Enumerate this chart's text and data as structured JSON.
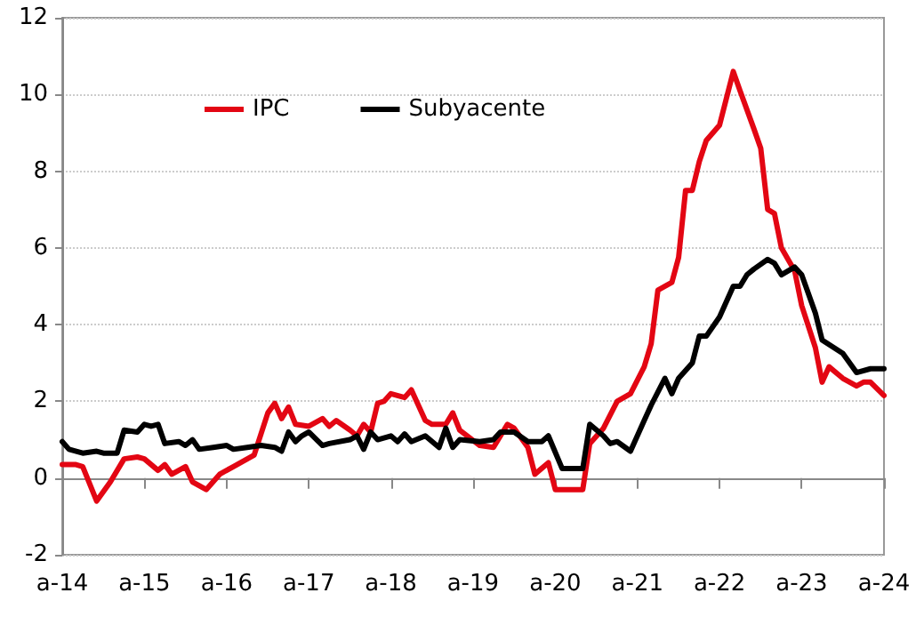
{
  "chart_data": {
    "type": "line",
    "xlim": [
      "2014-04",
      "2024-04"
    ],
    "xticks": [
      {
        "value": "2014-04",
        "label": "a-14"
      },
      {
        "value": "2015-04",
        "label": "a-15"
      },
      {
        "value": "2016-04",
        "label": "a-16"
      },
      {
        "value": "2017-04",
        "label": "a-17"
      },
      {
        "value": "2018-04",
        "label": "a-18"
      },
      {
        "value": "2019-04",
        "label": "a-19"
      },
      {
        "value": "2020-04",
        "label": "a-20"
      },
      {
        "value": "2021-04",
        "label": "a-21"
      },
      {
        "value": "2022-04",
        "label": "a-22"
      },
      {
        "value": "2023-04",
        "label": "a-23"
      },
      {
        "value": "2024-04",
        "label": "a-24"
      }
    ],
    "ylim": [
      -2,
      12
    ],
    "yticks": [
      -2,
      0,
      2,
      4,
      6,
      8,
      10,
      12
    ],
    "grid": "y",
    "legend": "top left",
    "marker": "none",
    "line_style": "solid",
    "series": [
      {
        "name": "IPC",
        "color": "#e30613",
        "x": [
          "2014-04",
          "2014-06",
          "2014-07",
          "2014-09",
          "2014-11",
          "2015-01",
          "2015-03",
          "2015-04",
          "2015-06",
          "2015-07",
          "2015-08",
          "2015-10",
          "2015-11",
          "2016-01",
          "2016-03",
          "2016-05",
          "2016-08",
          "2016-10",
          "2016-11",
          "2016-12",
          "2017-01",
          "2017-02",
          "2017-04",
          "2017-06",
          "2017-07",
          "2017-08",
          "2017-10",
          "2017-11",
          "2017-12",
          "2018-01",
          "2018-02",
          "2018-03",
          "2018-04",
          "2018-06",
          "2018-07",
          "2018-09",
          "2018-10",
          "2018-12",
          "2019-01",
          "2019-02",
          "2019-05",
          "2019-07",
          "2019-09",
          "2019-10",
          "2019-12",
          "2020-01",
          "2020-03",
          "2020-04",
          "2020-08",
          "2020-09",
          "2020-11",
          "2021-01",
          "2021-03",
          "2021-05",
          "2021-06",
          "2021-07",
          "2021-09",
          "2021-10",
          "2021-11",
          "2021-12",
          "2022-01",
          "2022-02",
          "2022-04",
          "2022-06",
          "2022-07",
          "2022-09",
          "2022-10",
          "2022-11",
          "2022-12",
          "2023-01",
          "2023-03",
          "2023-04",
          "2023-06",
          "2023-07",
          "2023-08",
          "2023-10",
          "2023-12",
          "2024-01",
          "2024-02",
          "2024-04"
        ],
        "values": [
          0.35,
          0.35,
          0.3,
          -0.6,
          -0.1,
          0.5,
          0.55,
          0.5,
          0.2,
          0.35,
          0.1,
          0.3,
          -0.1,
          -0.3,
          0.1,
          0.3,
          0.6,
          1.7,
          1.95,
          1.55,
          1.85,
          1.4,
          1.35,
          1.55,
          1.35,
          1.5,
          1.25,
          1.1,
          1.4,
          1.2,
          1.95,
          2.0,
          2.2,
          2.1,
          2.3,
          1.5,
          1.4,
          1.4,
          1.7,
          1.25,
          0.85,
          0.8,
          1.4,
          1.3,
          0.8,
          0.1,
          0.4,
          -0.3,
          -0.3,
          0.9,
          1.3,
          2.0,
          2.2,
          2.9,
          3.5,
          4.9,
          5.1,
          5.75,
          7.5,
          7.5,
          8.25,
          8.8,
          9.2,
          10.6,
          10.1,
          9.1,
          8.6,
          7.0,
          6.9,
          6.0,
          5.4,
          4.5,
          3.4,
          2.5,
          2.9,
          2.6,
          2.4,
          2.5,
          2.5,
          2.15
        ]
      },
      {
        "name": "Subyacente",
        "color": "#000000",
        "x": [
          "2014-04",
          "2014-05",
          "2014-07",
          "2014-09",
          "2014-10",
          "2014-12",
          "2015-01",
          "2015-03",
          "2015-04",
          "2015-05",
          "2015-06",
          "2015-07",
          "2015-09",
          "2015-10",
          "2015-11",
          "2015-12",
          "2016-02",
          "2016-04",
          "2016-05",
          "2016-07",
          "2016-09",
          "2016-11",
          "2016-12",
          "2017-01",
          "2017-02",
          "2017-03",
          "2017-04",
          "2017-06",
          "2017-07",
          "2017-10",
          "2017-11",
          "2017-12",
          "2018-01",
          "2018-02",
          "2018-04",
          "2018-05",
          "2018-06",
          "2018-07",
          "2018-09",
          "2018-11",
          "2018-12",
          "2019-01",
          "2019-02",
          "2019-05",
          "2019-07",
          "2019-08",
          "2019-10",
          "2019-12",
          "2020-02",
          "2020-03",
          "2020-05",
          "2020-08",
          "2020-09",
          "2020-11",
          "2020-12",
          "2021-01",
          "2021-03",
          "2021-05",
          "2021-06",
          "2021-08",
          "2021-09",
          "2021-10",
          "2021-12",
          "2022-01",
          "2022-02",
          "2022-04",
          "2022-06",
          "2022-07",
          "2022-08",
          "2022-09",
          "2022-11",
          "2022-12",
          "2023-01",
          "2023-03",
          "2023-04",
          "2023-06",
          "2023-07",
          "2023-10",
          "2023-12",
          "2024-02",
          "2024-04"
        ],
        "values": [
          0.95,
          0.75,
          0.65,
          0.7,
          0.65,
          0.65,
          1.25,
          1.2,
          1.4,
          1.35,
          1.4,
          0.9,
          0.95,
          0.85,
          1.0,
          0.75,
          0.8,
          0.85,
          0.75,
          0.8,
          0.85,
          0.8,
          0.7,
          1.2,
          0.95,
          1.1,
          1.2,
          0.85,
          0.9,
          1.0,
          1.1,
          0.75,
          1.2,
          1.0,
          1.1,
          0.95,
          1.15,
          0.95,
          1.1,
          0.8,
          1.3,
          0.8,
          1.0,
          0.95,
          1.0,
          1.2,
          1.2,
          0.95,
          0.95,
          1.1,
          0.25,
          0.25,
          1.4,
          1.1,
          0.9,
          0.95,
          0.7,
          1.5,
          1.9,
          2.6,
          2.2,
          2.6,
          3.0,
          3.7,
          3.7,
          4.2,
          5.0,
          5.0,
          5.3,
          5.45,
          5.7,
          5.6,
          5.3,
          5.5,
          5.3,
          4.3,
          3.6,
          3.25,
          2.75,
          2.85,
          2.85
        ]
      }
    ]
  }
}
